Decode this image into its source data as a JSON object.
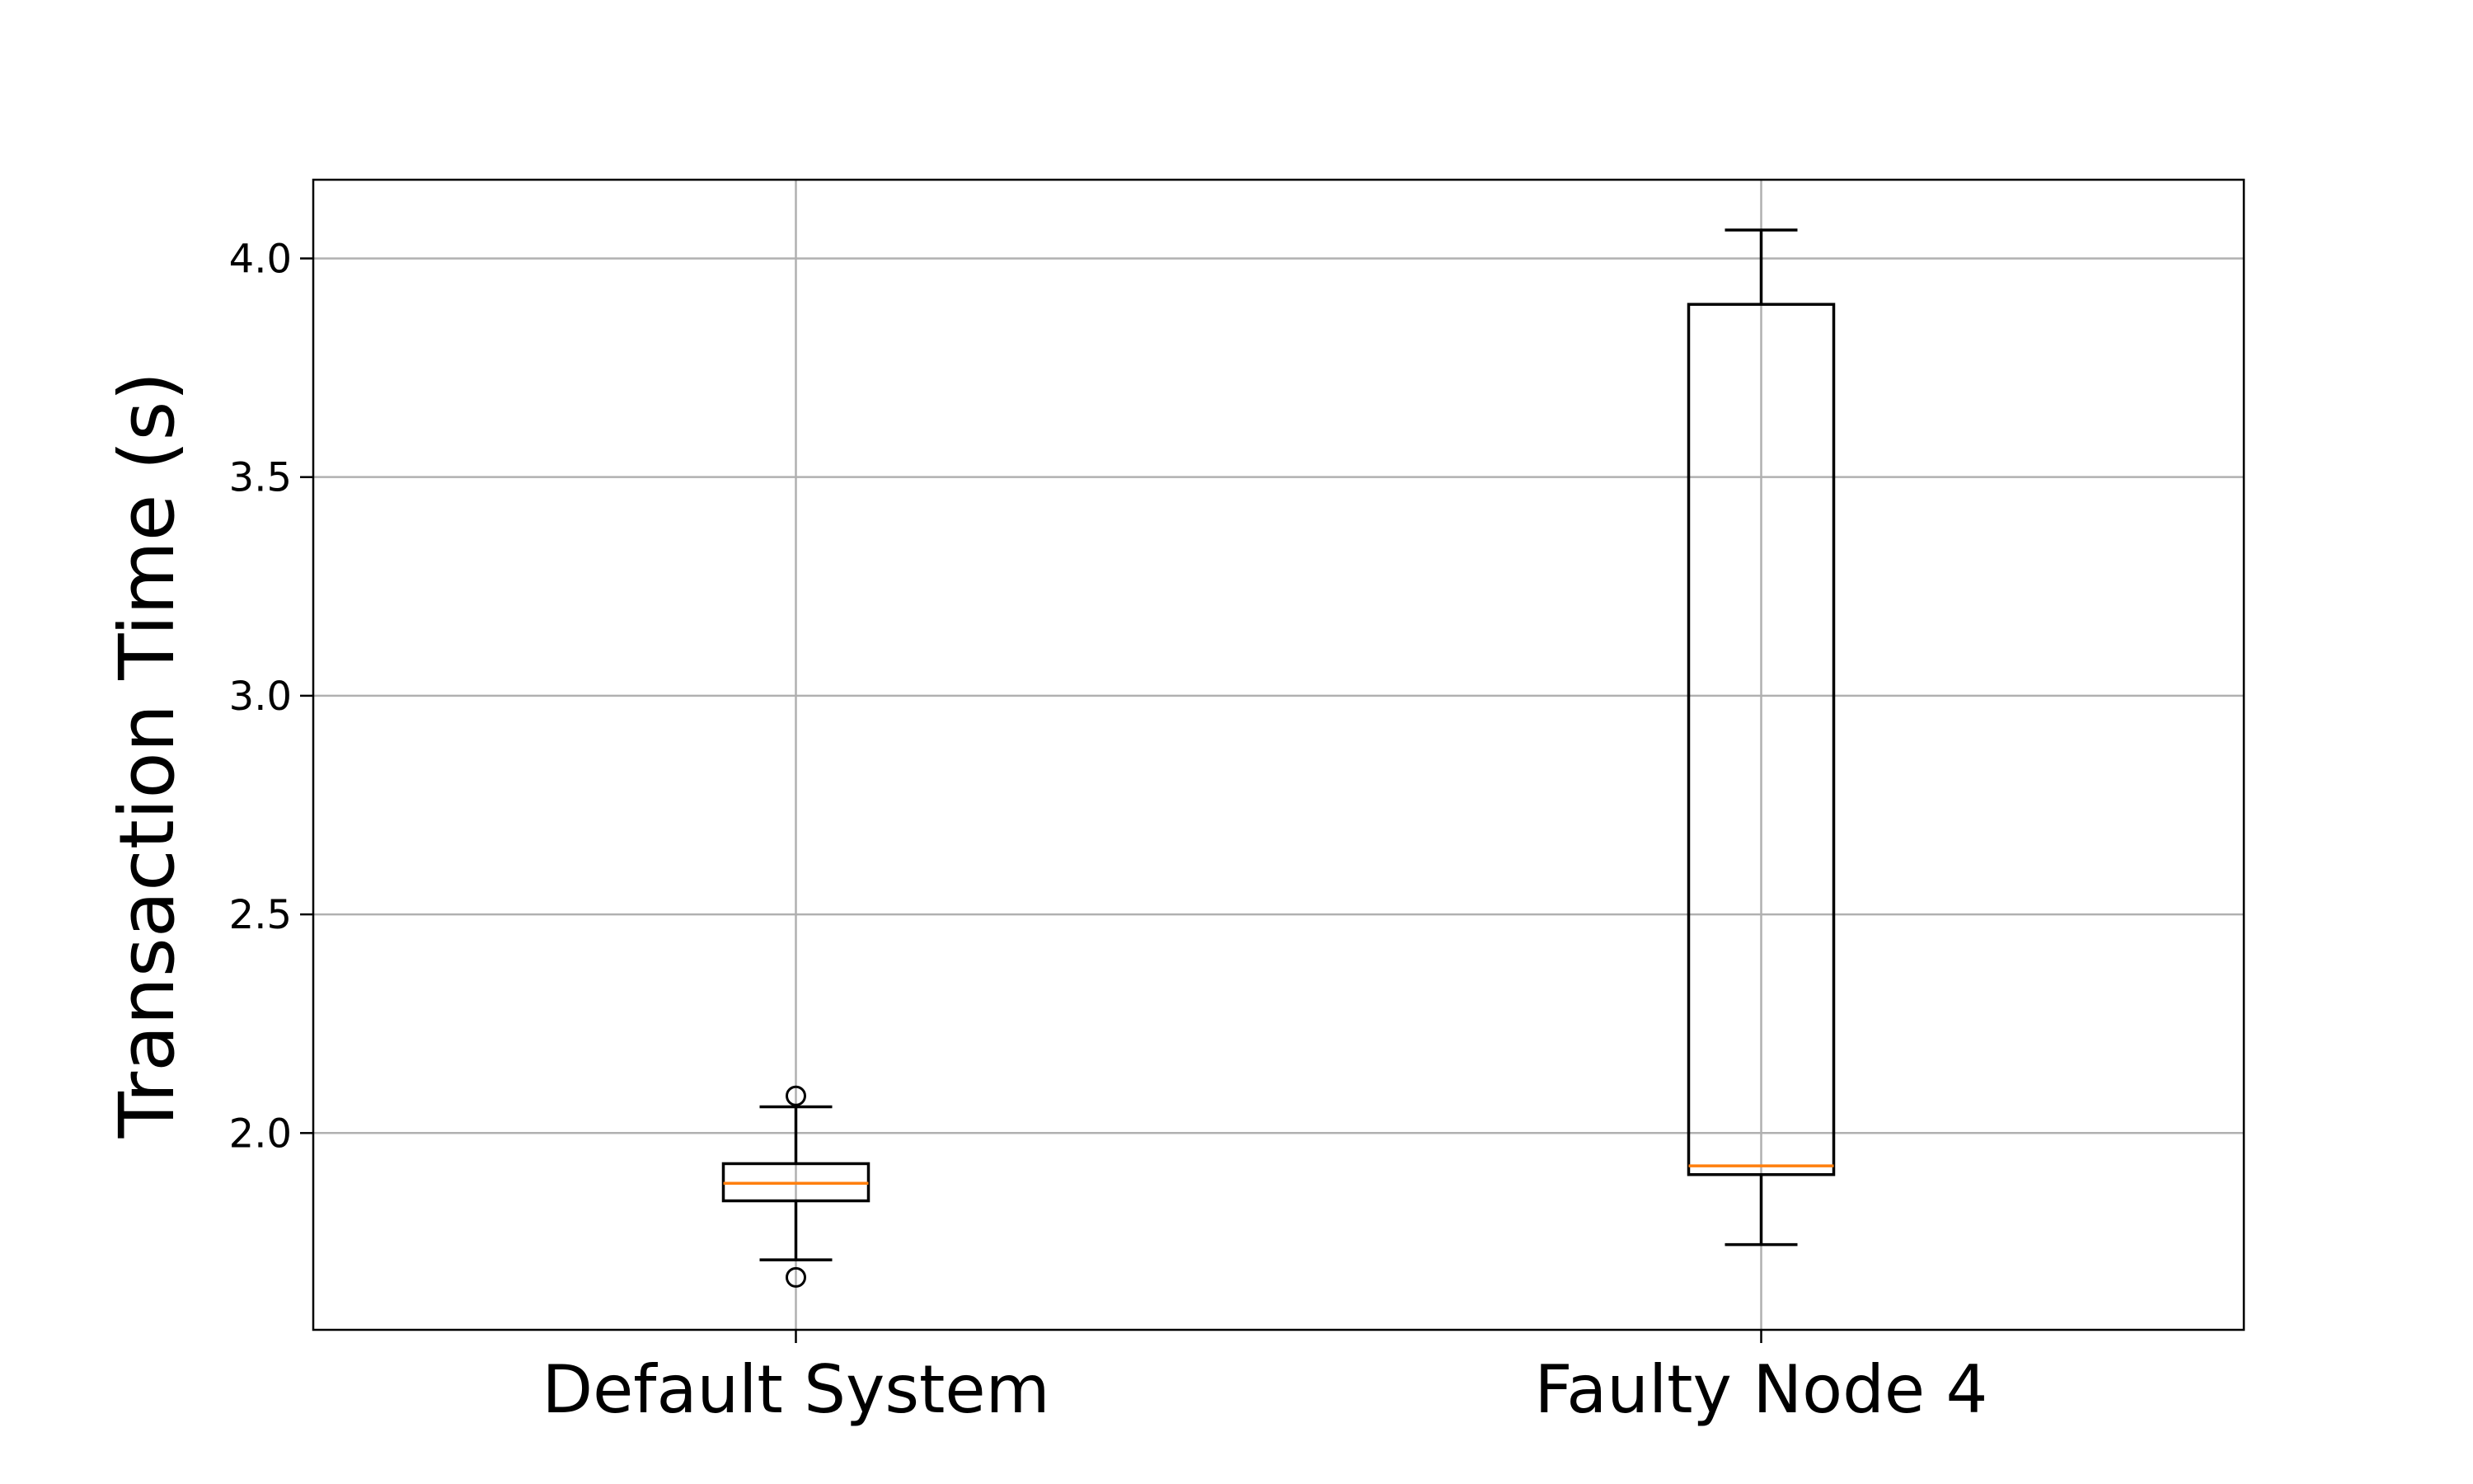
{
  "chart_data": {
    "type": "boxplot",
    "title": "",
    "xlabel": "",
    "ylabel": "Transaction Time (s)",
    "ylim": [
      1.55,
      4.18
    ],
    "yticks": [
      2.0,
      2.5,
      3.0,
      3.5,
      4.0
    ],
    "ytick_labels": [
      "2.0",
      "2.5",
      "3.0",
      "3.5",
      "4.0"
    ],
    "grid": true,
    "legend": "none",
    "categories": [
      "Default System",
      "Faulty Node 4"
    ],
    "boxes": [
      {
        "category": "Default System",
        "whisker_low": 1.71,
        "q1": 1.845,
        "median": 1.885,
        "q3": 1.93,
        "whisker_high": 2.06,
        "outliers": [
          1.67,
          2.085
        ]
      },
      {
        "category": "Faulty Node 4",
        "whisker_low": 1.745,
        "q1": 1.905,
        "median": 1.925,
        "q3": 3.895,
        "whisker_high": 4.065,
        "outliers": []
      }
    ],
    "colors": {
      "box": "#000000",
      "median": "#ff7f0e",
      "grid": "#b0b0b0"
    }
  }
}
